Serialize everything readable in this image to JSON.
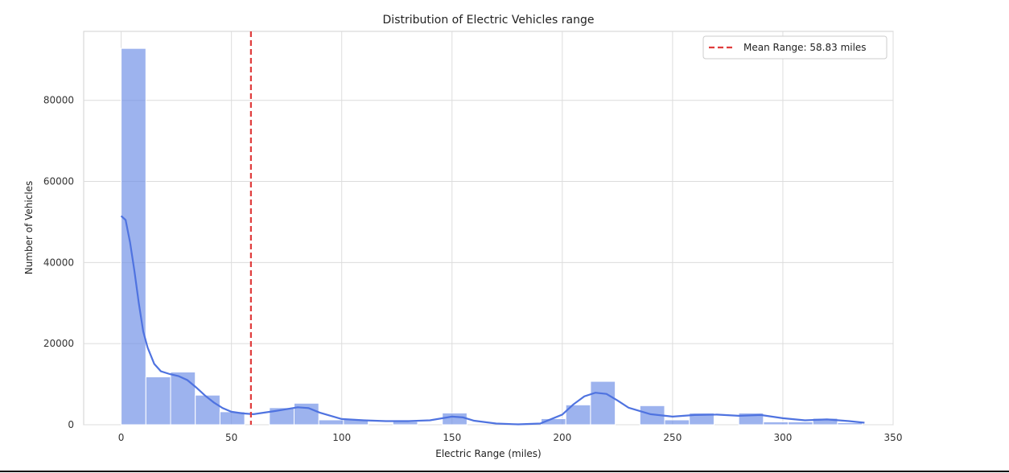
{
  "chart_data": {
    "type": "bar",
    "title": "Distribution of Electric Vehicles range",
    "xlabel": "Electric Range (miles)",
    "ylabel": "Number of Vehicles",
    "xlim": [
      -17,
      350
    ],
    "ylim": [
      0,
      97000
    ],
    "xticks": [
      0,
      50,
      100,
      150,
      200,
      250,
      300,
      350
    ],
    "yticks": [
      0,
      20000,
      40000,
      60000,
      80000
    ],
    "grid": true,
    "bar_color": "#6f8fe6",
    "kde_color": "#4f73e0",
    "bin_width": 11.2,
    "bins": [
      {
        "x0": 0.0,
        "value": 92800
      },
      {
        "x0": 11.2,
        "value": 11800
      },
      {
        "x0": 22.4,
        "value": 13000
      },
      {
        "x0": 33.6,
        "value": 7300
      },
      {
        "x0": 44.8,
        "value": 3200
      },
      {
        "x0": 56.0,
        "value": 0
      },
      {
        "x0": 67.2,
        "value": 4200
      },
      {
        "x0": 78.4,
        "value": 5300
      },
      {
        "x0": 89.6,
        "value": 1200
      },
      {
        "x0": 100.8,
        "value": 1300
      },
      {
        "x0": 112.0,
        "value": 0
      },
      {
        "x0": 123.2,
        "value": 800
      },
      {
        "x0": 134.4,
        "value": 0
      },
      {
        "x0": 145.6,
        "value": 2900
      },
      {
        "x0": 156.8,
        "value": 0
      },
      {
        "x0": 168.0,
        "value": 0
      },
      {
        "x0": 179.2,
        "value": 0
      },
      {
        "x0": 190.4,
        "value": 1500
      },
      {
        "x0": 201.6,
        "value": 4900
      },
      {
        "x0": 212.8,
        "value": 10700
      },
      {
        "x0": 224.0,
        "value": 0
      },
      {
        "x0": 235.2,
        "value": 4700
      },
      {
        "x0": 246.4,
        "value": 1200
      },
      {
        "x0": 257.6,
        "value": 2900
      },
      {
        "x0": 268.8,
        "value": 0
      },
      {
        "x0": 280.0,
        "value": 2900
      },
      {
        "x0": 291.2,
        "value": 700
      },
      {
        "x0": 302.4,
        "value": 700
      },
      {
        "x0": 313.6,
        "value": 1600
      },
      {
        "x0": 324.8,
        "value": 500
      }
    ],
    "kde": {
      "x": [
        0,
        2,
        4,
        6,
        8,
        10,
        12,
        15,
        18,
        22,
        26,
        30,
        34,
        38,
        42,
        46,
        50,
        55,
        60,
        70,
        80,
        85,
        90,
        100,
        110,
        120,
        130,
        140,
        150,
        155,
        160,
        170,
        180,
        190,
        200,
        205,
        210,
        215,
        220,
        225,
        230,
        240,
        250,
        260,
        270,
        280,
        290,
        300,
        310,
        320,
        330,
        337
      ],
      "y": [
        51500,
        50500,
        45000,
        38000,
        30000,
        23000,
        19000,
        15000,
        13200,
        12500,
        12000,
        11000,
        9200,
        7200,
        5500,
        4100,
        3200,
        2800,
        2600,
        3400,
        4300,
        4100,
        3000,
        1400,
        1100,
        900,
        900,
        1100,
        2000,
        1800,
        1000,
        300,
        100,
        300,
        2500,
        5000,
        7000,
        7900,
        7600,
        6000,
        4200,
        2600,
        2000,
        2400,
        2500,
        2200,
        2400,
        1600,
        1100,
        1300,
        900,
        500
      ]
    },
    "mean_line": {
      "x": 58.83,
      "label": "Mean Range: 58.83 miles",
      "color": "#e03c3c"
    },
    "legend_position": "top-right"
  }
}
